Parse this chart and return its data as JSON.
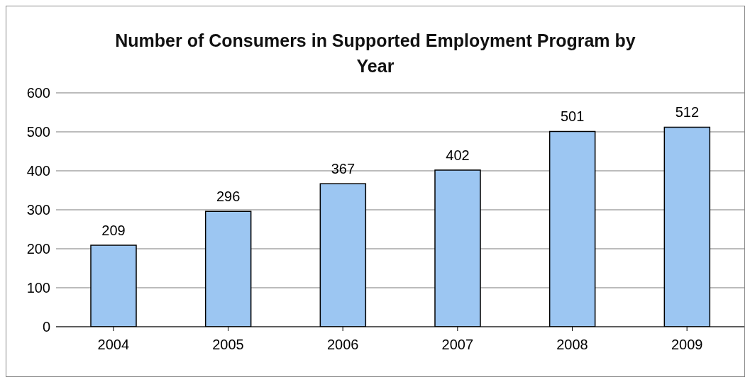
{
  "chart_data": {
    "type": "bar",
    "title": "Number of Consumers in Supported Employment Program by Year",
    "categories": [
      "2004",
      "2005",
      "2006",
      "2007",
      "2008",
      "2009"
    ],
    "values": [
      209,
      296,
      367,
      402,
      501,
      512
    ],
    "color": "#9cc6f2",
    "ylim": [
      0,
      600
    ],
    "yticks": [
      0,
      100,
      200,
      300,
      400,
      500,
      600
    ],
    "grid": "y",
    "data_labels": true
  }
}
